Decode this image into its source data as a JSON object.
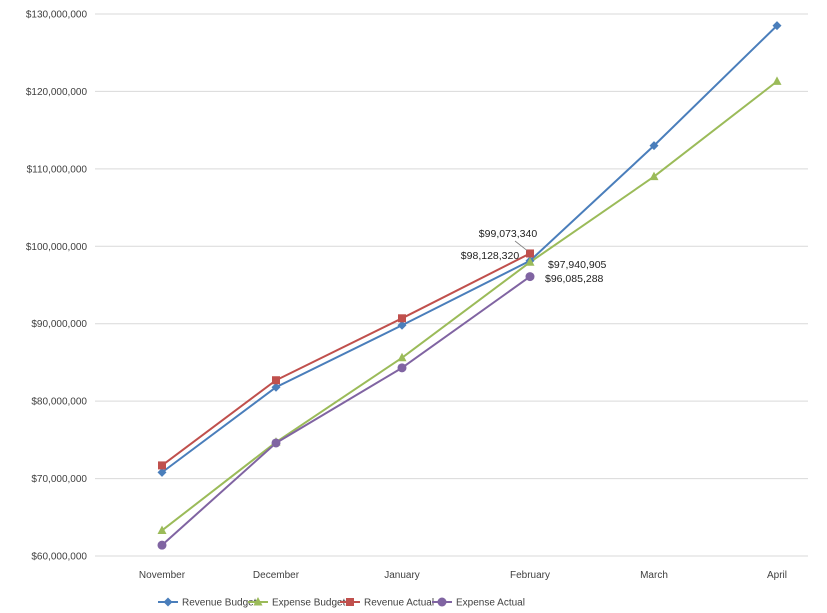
{
  "chart_data": {
    "type": "line",
    "categories": [
      "November",
      "December",
      "January",
      "February",
      "March",
      "April"
    ],
    "ylim": [
      60000000,
      130000000
    ],
    "yticks": [
      60000000,
      70000000,
      80000000,
      90000000,
      100000000,
      110000000,
      120000000,
      130000000
    ],
    "ytick_labels": [
      "$60,000,000",
      "$70,000,000",
      "$80,000,000",
      "$90,000,000",
      "$100,000,000",
      "$110,000,000",
      "$120,000,000",
      "$130,000,000"
    ],
    "grid": true,
    "legend_position": "bottom",
    "series": [
      {
        "name": "Revenue Budget",
        "color": "#4a7ebb",
        "marker": "diamond",
        "values": [
          70800000,
          81800000,
          89800000,
          98128320,
          113000000,
          128500000
        ]
      },
      {
        "name": "Expense Budget",
        "color": "#9bbb59",
        "marker": "triangle",
        "values": [
          63300000,
          74700000,
          85600000,
          97940905,
          109000000,
          121300000
        ]
      },
      {
        "name": "Revenue Actual",
        "color": "#c0504d",
        "marker": "square",
        "values": [
          71700000,
          82700000,
          90700000,
          99073340,
          null,
          null
        ]
      },
      {
        "name": "Expense Actual",
        "color": "#8064a2",
        "marker": "circle",
        "values": [
          61400000,
          74600000,
          84300000,
          96085288,
          null,
          null
        ]
      }
    ],
    "data_labels": [
      {
        "series": "Revenue Actual",
        "category": "February",
        "text": "$99,073,340"
      },
      {
        "series": "Revenue Budget",
        "category": "February",
        "text": "$98,128,320"
      },
      {
        "series": "Expense Budget",
        "category": "February",
        "text": "$97,940,905"
      },
      {
        "series": "Expense Actual",
        "category": "February",
        "text": "$96,085,288"
      }
    ]
  }
}
